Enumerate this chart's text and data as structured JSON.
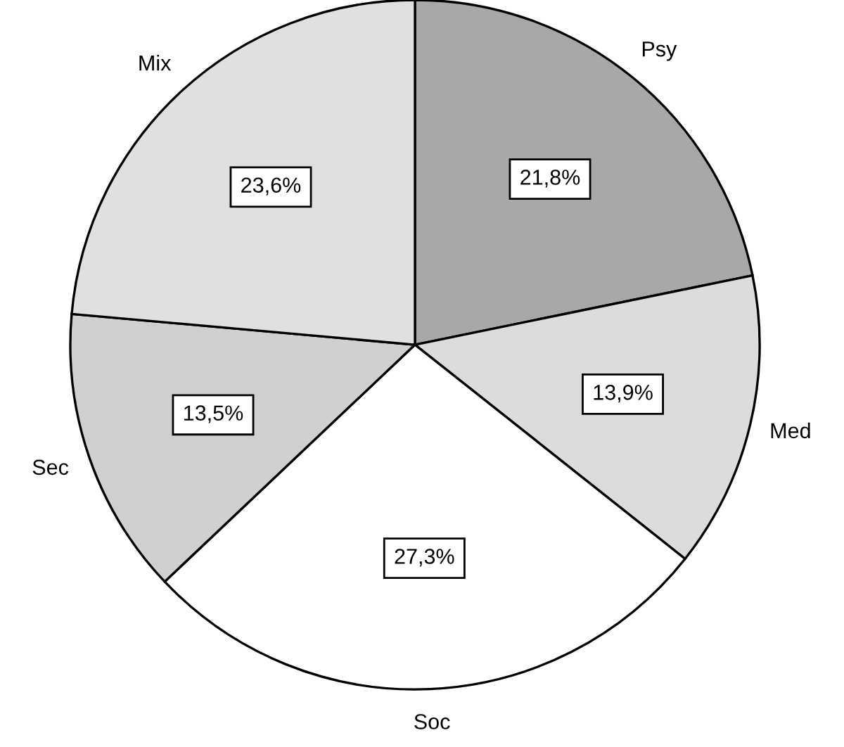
{
  "chart_data": {
    "type": "pie",
    "categories": [
      "Psy",
      "Med",
      "Soc",
      "Sec",
      "Mix"
    ],
    "values": [
      21.8,
      13.9,
      27.3,
      13.5,
      23.6
    ],
    "value_labels": [
      "21,8%",
      "13,9%",
      "27,3%",
      "13,5%",
      "23,6%"
    ],
    "colors": [
      "#a8a8a8",
      "#dcdcdc",
      "#ffffff",
      "#d0d0d0",
      "#e0e0e0"
    ],
    "legend": false
  }
}
